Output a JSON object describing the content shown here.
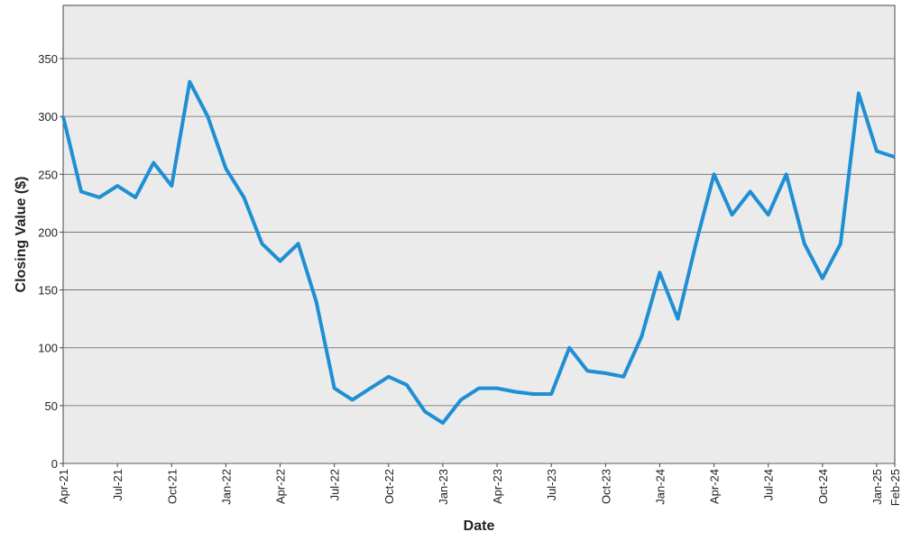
{
  "chart_data": {
    "type": "line",
    "x_label": "Date",
    "y_label": "Closing Value ($)",
    "x": [
      "2021-04",
      "2021-05",
      "2021-06",
      "2021-07",
      "2021-08",
      "2021-09",
      "2021-10",
      "2021-11",
      "2021-12",
      "2022-01",
      "2022-02",
      "2022-03",
      "2022-04",
      "2022-05",
      "2022-06",
      "2022-07",
      "2022-08",
      "2022-09",
      "2022-10",
      "2022-11",
      "2022-12",
      "2023-01",
      "2023-02",
      "2023-03",
      "2023-04",
      "2023-05",
      "2023-06",
      "2023-07",
      "2023-08",
      "2023-09",
      "2023-10",
      "2023-11",
      "2023-12",
      "2024-01",
      "2024-02",
      "2024-03",
      "2024-04",
      "2024-05",
      "2024-06",
      "2024-07",
      "2024-08",
      "2024-09",
      "2024-10",
      "2024-11",
      "2024-12",
      "2025-01",
      "2025-02"
    ],
    "values": [
      300,
      235,
      230,
      240,
      230,
      260,
      240,
      330,
      300,
      255,
      230,
      190,
      175,
      190,
      140,
      65,
      55,
      65,
      75,
      68,
      45,
      35,
      55,
      65,
      65,
      62,
      60,
      60,
      100,
      80,
      78,
      75,
      110,
      165,
      125,
      190,
      250,
      215,
      235,
      215,
      250,
      190,
      160,
      190,
      320,
      270,
      265
    ],
    "color": "#1f8fd4",
    "xlim": [
      "2021-04",
      "2025-02"
    ],
    "xticks": [
      {
        "value": "2021-04",
        "label": "Apr-21"
      },
      {
        "value": "2021-07",
        "label": "Jul-21"
      },
      {
        "value": "2021-10",
        "label": "Oct-21"
      },
      {
        "value": "2022-01",
        "label": "Jan-22"
      },
      {
        "value": "2022-04",
        "label": "Apr-22"
      },
      {
        "value": "2022-07",
        "label": "Jul-22"
      },
      {
        "value": "2022-10",
        "label": "Oct-22"
      },
      {
        "value": "2023-01",
        "label": "Jan-23"
      },
      {
        "value": "2023-04",
        "label": "Apr-23"
      },
      {
        "value": "2023-07",
        "label": "Jul-23"
      },
      {
        "value": "2023-10",
        "label": "Oct-23"
      },
      {
        "value": "2024-01",
        "label": "Jan-24"
      },
      {
        "value": "2024-04",
        "label": "Apr-24"
      },
      {
        "value": "2024-07",
        "label": "Jul-24"
      },
      {
        "value": "2024-10",
        "label": "Oct-24"
      },
      {
        "value": "2025-01",
        "label": "Jan-25"
      },
      {
        "value": "2025-02",
        "label": "Feb-25"
      }
    ],
    "ylim": [
      0,
      396
    ],
    "yticks": [
      0,
      50,
      100,
      150,
      200,
      250,
      300,
      350
    ],
    "grid": true
  }
}
